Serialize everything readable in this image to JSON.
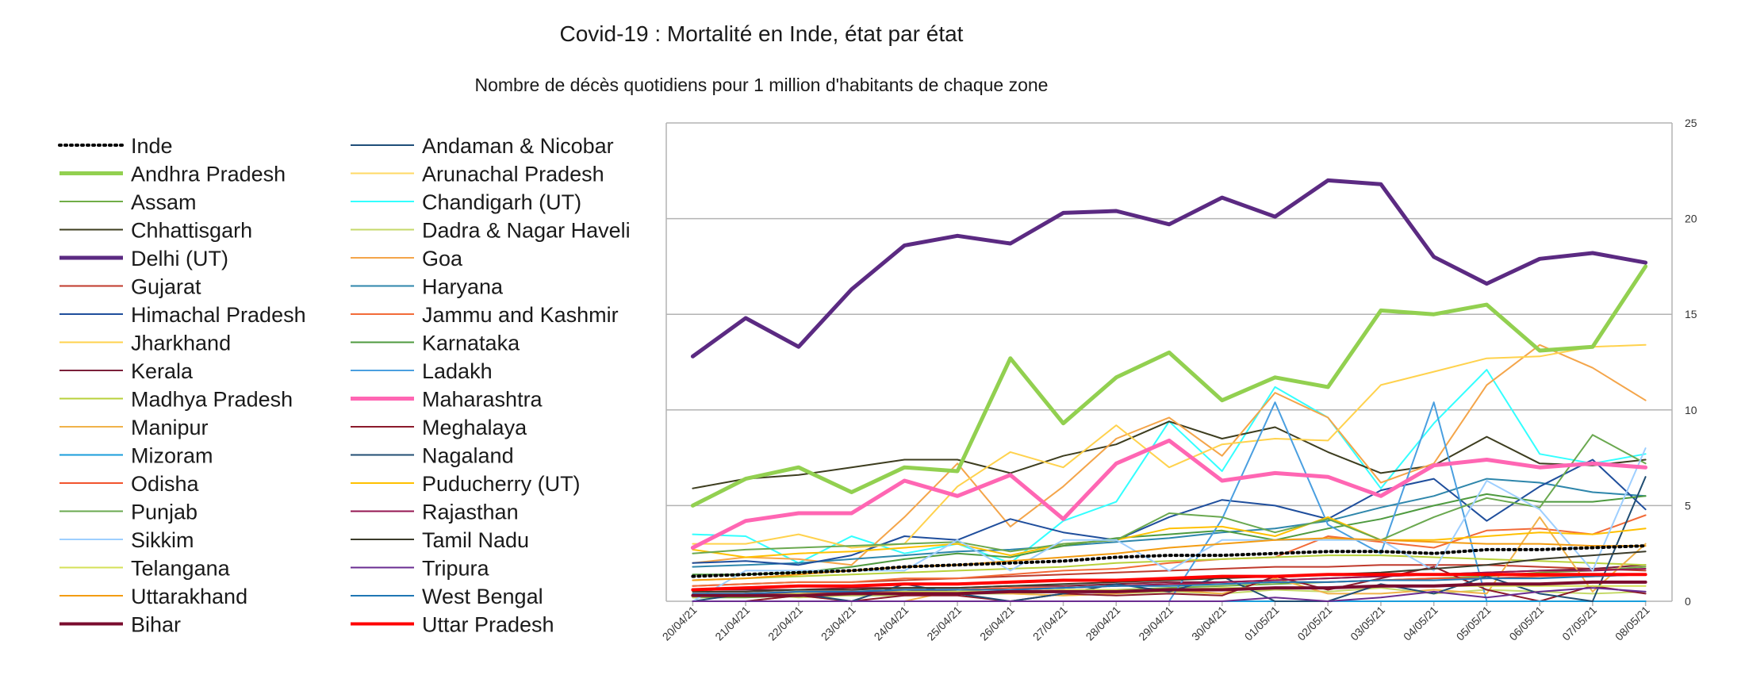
{
  "chart_data": {
    "type": "line",
    "title": "Covid-19 : Mortalité en Inde, état par état",
    "subtitle": "Nombre de décès quotidiens pour 1 million d'habitants de chaque zone",
    "y_axis_position": "right",
    "ylim": [
      0,
      25
    ],
    "yticks": [
      0,
      5,
      10,
      15,
      20,
      25
    ],
    "grid": "horizontal",
    "legend_position": "left",
    "x": [
      "20/04/21",
      "21/04/21",
      "22/04/21",
      "23/04/21",
      "24/04/21",
      "25/04/21",
      "26/04/21",
      "27/04/21",
      "28/04/21",
      "29/04/21",
      "30/04/21",
      "01/05/21",
      "02/05/21",
      "03/05/21",
      "04/05/21",
      "05/05/21",
      "06/05/21",
      "07/05/21",
      "08/05/21"
    ],
    "series": [
      {
        "name": "Inde",
        "color": "#000000",
        "width": 4,
        "dash": "dot",
        "values": [
          1.3,
          1.4,
          1.5,
          1.6,
          1.8,
          1.9,
          2.0,
          2.1,
          2.3,
          2.4,
          2.4,
          2.5,
          2.6,
          2.6,
          2.5,
          2.7,
          2.7,
          2.8,
          2.9
        ]
      },
      {
        "name": "Andaman & Nicobar",
        "color": "#1f4e79",
        "width": 2,
        "values": [
          0.0,
          0.0,
          0.0,
          0.0,
          0.0,
          0.0,
          0.0,
          0.0,
          0.0,
          0.0,
          0.0,
          0.0,
          0.0,
          0.0,
          0.0,
          0.0,
          0.0,
          0.0,
          0.0
        ]
      },
      {
        "name": "Andhra Pradesh",
        "color": "#92d050",
        "width": 5,
        "values": [
          5.0,
          6.4,
          7.0,
          5.7,
          7.0,
          6.8,
          12.7,
          9.3,
          11.7,
          13.0,
          10.5,
          11.7,
          11.2,
          15.2,
          15.0,
          15.5,
          13.1,
          13.3,
          17.5
        ]
      },
      {
        "name": "Arunachal Pradesh",
        "color": "#ffd966",
        "width": 2,
        "values": [
          0.0,
          0.0,
          0.0,
          0.0,
          0.0,
          0.0,
          0.0,
          0.0,
          0.0,
          0.0,
          0.0,
          0.0,
          0.0,
          0.0,
          0.0,
          0.0,
          0.0,
          0.0,
          0.0
        ]
      },
      {
        "name": "Assam",
        "color": "#70ad47",
        "width": 2,
        "values": [
          0.2,
          0.2,
          0.3,
          0.3,
          0.3,
          0.4,
          0.4,
          0.5,
          0.6,
          0.7,
          0.8,
          0.9,
          1.0,
          1.1,
          1.2,
          1.3,
          1.5,
          1.6,
          1.8
        ]
      },
      {
        "name": "Chandigarh (UT)",
        "color": "#33ffff",
        "width": 2,
        "values": [
          3.5,
          3.4,
          2.0,
          3.4,
          2.5,
          3.0,
          2.0,
          4.2,
          5.2,
          9.4,
          6.8,
          11.2,
          9.6,
          5.9,
          9.3,
          12.1,
          7.7,
          7.2,
          7.7
        ]
      },
      {
        "name": "Chhattisgarh",
        "color": "#3d3d1f",
        "width": 2,
        "values": [
          5.9,
          6.4,
          6.6,
          7.0,
          7.4,
          7.4,
          6.7,
          7.6,
          8.2,
          9.4,
          8.5,
          9.1,
          7.8,
          6.7,
          7.1,
          8.6,
          7.2,
          7.1,
          7.4
        ]
      },
      {
        "name": "Dadra & Nagar Haveli",
        "color": "#c5d96a",
        "width": 2,
        "values": [
          0.2,
          0.4,
          0.2,
          0.3,
          0.3,
          0.4,
          0.4,
          0.3,
          0.4,
          0.5,
          0.4,
          0.6,
          0.5,
          0.7,
          0.4,
          0.6,
          0.5,
          0.4,
          0.5
        ]
      },
      {
        "name": "Delhi (UT)",
        "color": "#5b2a82",
        "width": 5,
        "values": [
          12.8,
          14.8,
          13.3,
          16.3,
          18.6,
          19.1,
          18.7,
          20.3,
          20.4,
          19.7,
          21.1,
          20.1,
          22.0,
          21.8,
          18.0,
          16.6,
          17.9,
          18.2,
          17.7
        ]
      },
      {
        "name": "Goa",
        "color": "#f4a54a",
        "width": 2,
        "values": [
          2.0,
          2.3,
          2.2,
          1.9,
          4.4,
          7.2,
          3.9,
          6.0,
          8.5,
          9.6,
          7.6,
          10.9,
          9.6,
          6.2,
          7.2,
          11.3,
          13.4,
          12.2,
          10.5
        ]
      },
      {
        "name": "Gujarat",
        "color": "#c0392b",
        "width": 2,
        "values": [
          0.8,
          0.9,
          1.0,
          1.0,
          1.1,
          1.2,
          1.3,
          1.4,
          1.5,
          1.6,
          1.7,
          1.8,
          1.8,
          1.9,
          1.9,
          1.9,
          1.8,
          1.7,
          1.6
        ]
      },
      {
        "name": "Haryana",
        "color": "#2e86ab",
        "width": 2,
        "values": [
          1.8,
          1.9,
          2.0,
          2.2,
          2.4,
          2.6,
          2.7,
          2.9,
          3.1,
          3.3,
          3.6,
          3.8,
          4.2,
          4.9,
          5.5,
          6.4,
          6.2,
          5.7,
          5.5
        ]
      },
      {
        "name": "Himachal Pradesh",
        "color": "#1f4e9c",
        "width": 2,
        "values": [
          2.0,
          2.1,
          1.9,
          2.4,
          3.4,
          3.2,
          4.3,
          3.6,
          3.2,
          4.4,
          5.3,
          5.0,
          4.3,
          5.8,
          6.4,
          4.2,
          6.0,
          7.4,
          4.8
        ]
      },
      {
        "name": "Jammu and Kashmir",
        "color": "#f26b38",
        "width": 2,
        "values": [
          0.8,
          0.9,
          1.0,
          1.0,
          1.2,
          1.2,
          1.4,
          1.6,
          1.7,
          2.0,
          2.2,
          2.3,
          3.4,
          3.1,
          2.8,
          3.7,
          3.8,
          3.5,
          4.5
        ]
      },
      {
        "name": "Jharkhand",
        "color": "#ffd24d",
        "width": 2,
        "values": [
          3.0,
          3.0,
          3.5,
          2.8,
          3.0,
          6.0,
          7.8,
          7.0,
          9.2,
          7.0,
          8.2,
          8.5,
          8.4,
          11.3,
          12.0,
          12.7,
          12.8,
          13.3,
          13.4
        ]
      },
      {
        "name": "Karnataka",
        "color": "#4e9a3f",
        "width": 2,
        "values": [
          1.4,
          1.4,
          1.5,
          1.8,
          2.2,
          2.5,
          2.3,
          2.9,
          3.3,
          3.5,
          3.7,
          3.2,
          3.8,
          4.3,
          5.0,
          5.6,
          5.2,
          5.2,
          5.5
        ]
      },
      {
        "name": "Kerala",
        "color": "#7b1f3a",
        "width": 2,
        "values": [
          0.6,
          0.6,
          0.6,
          0.7,
          0.7,
          0.7,
          0.8,
          0.8,
          0.9,
          1.0,
          1.0,
          1.1,
          1.2,
          1.3,
          1.4,
          1.5,
          1.6,
          1.7,
          1.9
        ]
      },
      {
        "name": "Ladakh",
        "color": "#4a9fe0",
        "width": 2,
        "values": [
          0.0,
          0.0,
          0.0,
          0.0,
          0.0,
          0.0,
          0.0,
          0.0,
          0.0,
          0.0,
          4.3,
          10.4,
          4.0,
          2.5,
          10.4,
          0.0,
          0.0,
          0.0,
          0.0
        ]
      },
      {
        "name": "Madhya Pradesh",
        "color": "#b8d13b",
        "width": 2,
        "values": [
          1.1,
          1.2,
          1.3,
          1.4,
          1.5,
          1.6,
          1.7,
          1.8,
          2.0,
          2.1,
          2.2,
          2.3,
          2.4,
          2.4,
          2.3,
          2.2,
          2.1,
          2.0,
          1.9
        ]
      },
      {
        "name": "Maharashtra",
        "color": "#ff66b3",
        "width": 5,
        "values": [
          2.8,
          4.2,
          4.6,
          4.6,
          6.3,
          5.5,
          6.6,
          4.3,
          7.2,
          8.4,
          6.3,
          6.7,
          6.5,
          5.5,
          7.1,
          7.4,
          7.0,
          7.2,
          7.0
        ]
      },
      {
        "name": "Manipur",
        "color": "#f0b24a",
        "width": 2,
        "values": [
          0.0,
          0.0,
          0.3,
          0.0,
          0.0,
          0.6,
          0.4,
          0.3,
          0.4,
          0.6,
          0.4,
          1.2,
          0.4,
          0.4,
          0.6,
          0.4,
          4.4,
          0.5,
          3.0
        ]
      },
      {
        "name": "Meghalaya",
        "color": "#8b1a2b",
        "width": 2,
        "values": [
          0.0,
          0.0,
          0.3,
          0.0,
          0.3,
          0.3,
          0.0,
          0.4,
          0.3,
          0.4,
          0.3,
          1.3,
          0.6,
          1.2,
          1.8,
          0.6,
          0.0,
          0.8,
          0.4
        ]
      },
      {
        "name": "Mizoram",
        "color": "#1a9edb",
        "width": 2,
        "values": [
          0.0,
          0.0,
          0.0,
          0.0,
          0.0,
          0.0,
          0.0,
          0.0,
          0.0,
          0.0,
          0.0,
          0.0,
          0.0,
          0.0,
          0.0,
          0.0,
          0.0,
          0.0,
          0.0
        ]
      },
      {
        "name": "Nagaland",
        "color": "#214e73",
        "width": 2,
        "values": [
          0.0,
          0.4,
          0.4,
          0.0,
          0.9,
          0.4,
          0.0,
          0.4,
          0.9,
          0.5,
          1.3,
          0.0,
          0.0,
          0.9,
          0.4,
          1.3,
          0.4,
          0.0,
          6.5
        ]
      },
      {
        "name": "Odisha",
        "color": "#f2542d",
        "width": 2,
        "values": [
          0.4,
          0.4,
          0.5,
          0.5,
          0.6,
          0.6,
          0.7,
          0.7,
          0.8,
          0.9,
          0.9,
          1.0,
          1.0,
          1.1,
          1.2,
          1.2,
          1.3,
          1.3,
          1.4
        ]
      },
      {
        "name": "Puducherry (UT)",
        "color": "#ffc000",
        "width": 2,
        "values": [
          2.7,
          2.3,
          2.5,
          2.6,
          2.8,
          3.0,
          2.4,
          3.0,
          3.2,
          3.8,
          3.9,
          3.4,
          4.4,
          3.2,
          3.2,
          3.4,
          3.6,
          3.5,
          3.8
        ]
      },
      {
        "name": "Punjab",
        "color": "#6aa84f",
        "width": 2,
        "values": [
          2.5,
          2.7,
          2.8,
          2.9,
          3.0,
          3.1,
          2.6,
          3.0,
          3.2,
          4.6,
          4.4,
          3.6,
          4.3,
          3.2,
          4.4,
          5.4,
          4.9,
          8.7,
          7.2
        ]
      },
      {
        "name": "Rajasthan",
        "color": "#941651",
        "width": 2,
        "values": [
          0.3,
          0.4,
          0.4,
          0.5,
          0.5,
          0.6,
          0.6,
          0.7,
          0.8,
          0.9,
          1.0,
          1.1,
          1.2,
          1.3,
          1.4,
          1.5,
          1.6,
          1.6,
          1.7
        ]
      },
      {
        "name": "Sikkim",
        "color": "#9ecfff",
        "width": 2,
        "values": [
          0.0,
          1.6,
          1.6,
          1.6,
          1.6,
          3.2,
          1.6,
          3.2,
          3.2,
          1.6,
          3.2,
          3.2,
          3.2,
          3.2,
          1.6,
          6.3,
          4.8,
          1.6,
          8.0
        ]
      },
      {
        "name": "Tamil Nadu",
        "color": "#3b3b2a",
        "width": 2,
        "values": [
          0.5,
          0.5,
          0.6,
          0.6,
          0.7,
          0.7,
          0.8,
          0.9,
          1.0,
          1.1,
          1.2,
          1.3,
          1.4,
          1.5,
          1.7,
          1.9,
          2.2,
          2.4,
          2.6
        ]
      },
      {
        "name": "Telangana",
        "color": "#d4e157",
        "width": 2,
        "values": [
          0.3,
          0.3,
          0.4,
          0.4,
          0.5,
          0.5,
          0.5,
          0.6,
          0.6,
          0.6,
          0.7,
          0.7,
          0.7,
          0.8,
          0.8,
          0.8,
          0.8,
          0.8,
          0.8
        ]
      },
      {
        "name": "Tripura",
        "color": "#6a2c91",
        "width": 2,
        "values": [
          0.0,
          0.0,
          0.0,
          0.0,
          0.0,
          0.0,
          0.0,
          0.0,
          0.0,
          0.0,
          0.0,
          0.2,
          0.0,
          0.2,
          0.5,
          0.2,
          0.5,
          0.7,
          0.5
        ]
      },
      {
        "name": "Uttarakhand",
        "color": "#f39c12",
        "width": 2,
        "values": [
          1.1,
          1.2,
          1.4,
          1.6,
          1.8,
          1.9,
          2.1,
          2.3,
          2.5,
          2.8,
          3.0,
          3.2,
          3.3,
          3.2,
          3.1,
          3.0,
          3.0,
          2.9,
          2.9
        ]
      },
      {
        "name": "West Bengal",
        "color": "#1f77b4",
        "width": 2,
        "values": [
          0.4,
          0.4,
          0.5,
          0.5,
          0.6,
          0.6,
          0.6,
          0.7,
          0.8,
          0.8,
          0.9,
          1.0,
          1.0,
          1.1,
          1.1,
          1.2,
          1.2,
          1.3,
          1.4
        ]
      },
      {
        "name": "Bihar",
        "color": "#7a0c2e",
        "width": 4,
        "values": [
          0.3,
          0.3,
          0.3,
          0.4,
          0.4,
          0.4,
          0.5,
          0.5,
          0.5,
          0.6,
          0.6,
          0.7,
          0.7,
          0.8,
          0.8,
          0.9,
          0.9,
          1.0,
          1.0
        ]
      },
      {
        "name": "Uttar Pradesh",
        "color": "#ff0000",
        "width": 4,
        "values": [
          0.6,
          0.7,
          0.8,
          0.8,
          0.9,
          0.9,
          1.0,
          1.1,
          1.1,
          1.2,
          1.3,
          1.3,
          1.4,
          1.4,
          1.4,
          1.4,
          1.4,
          1.4,
          1.4
        ]
      }
    ]
  }
}
